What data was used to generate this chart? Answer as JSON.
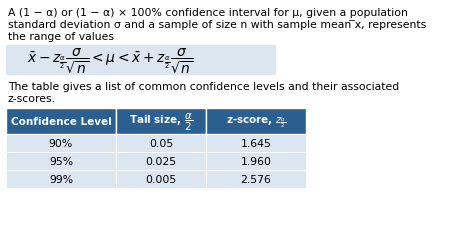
{
  "para_text1": "A (1 − α) or (1 − α) × 100% confidence interval for μ, given a population",
  "para_text2": "standard deviation σ and a sample of size n with sample mean ̅x, represents",
  "para_text3": "the range of values",
  "formula": "$\\bar{x} - z_{\\frac{\\alpha}{2}}\\dfrac{\\sigma}{\\sqrt{n}} < \\mu < \\bar{x} + z_{\\frac{\\alpha}{2}}\\dfrac{\\sigma}{\\sqrt{n}}$",
  "table_intro1": "The table gives a list of common confidence levels and their associated",
  "table_intro2": "z-scores.",
  "col_headers": [
    "Confidence Level",
    "Tail size, $\\dfrac{\\alpha}{2}$",
    "z-score, $z_{\\frac{\\alpha}{2}}$"
  ],
  "rows": [
    [
      "90%",
      "0.05",
      "1.645"
    ],
    [
      "95%",
      "0.025",
      "1.960"
    ],
    [
      "99%",
      "0.005",
      "2.576"
    ]
  ],
  "header_bg": "#2a5f8f",
  "header_fg": "#ffffff",
  "row_bg_odd": "#dce6f1",
  "row_bg_even": "#dce6f1",
  "formula_bg": "#dce6f1",
  "border_color": "#ffffff",
  "font_size_text": 7.8,
  "font_size_formula": 10,
  "font_size_table_header": 7.5,
  "font_size_table_data": 7.8
}
